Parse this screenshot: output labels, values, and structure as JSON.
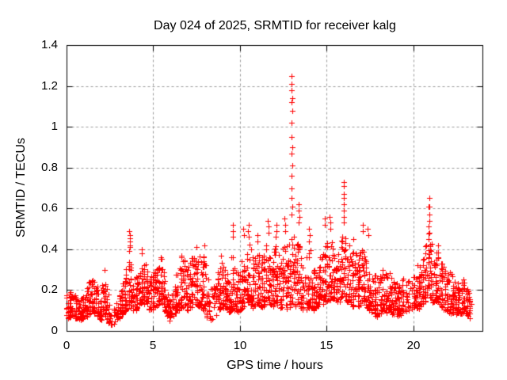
{
  "title": "Day 024 of 2025, SRMTID for receiver kalg",
  "chart_data": {
    "type": "scatter",
    "title": "Day 024 of 2025, SRMTID for receiver kalg",
    "xlabel": "GPS time / hours",
    "ylabel": "SRMTID / TECUs",
    "marker": "plus",
    "marker_color": "#ff0000",
    "frame_color": "#000000",
    "grid": true,
    "grid_color": "#9b9b9b",
    "background_color": "#ffffff",
    "legend": "none",
    "xlim": [
      0,
      24
    ],
    "ylim": [
      0,
      1.4
    ],
    "xticks": {
      "values": [
        0,
        5,
        10,
        15,
        20
      ],
      "labels": [
        "0",
        "5",
        "10",
        "15",
        "20"
      ]
    },
    "yticks": {
      "values": [
        0,
        0.2,
        0.4,
        0.6,
        0.8,
        1.0,
        1.2,
        1.4
      ],
      "labels": [
        "0",
        "0.2",
        "0.4",
        "0.6",
        "0.8",
        "1",
        "1.2",
        "1.4"
      ]
    },
    "band_envelope": [
      [
        0.0,
        0.06,
        0.2
      ],
      [
        0.3,
        0.07,
        0.19
      ],
      [
        0.6,
        0.06,
        0.17
      ],
      [
        0.9,
        0.05,
        0.16
      ],
      [
        1.15,
        0.07,
        0.2
      ],
      [
        1.4,
        0.09,
        0.26
      ],
      [
        1.65,
        0.08,
        0.24
      ],
      [
        1.9,
        0.05,
        0.17
      ],
      [
        2.1,
        0.07,
        0.24
      ],
      [
        2.25,
        0.08,
        0.31
      ],
      [
        2.4,
        0.04,
        0.14,
        1
      ],
      [
        2.6,
        0.03,
        0.1,
        1
      ],
      [
        2.8,
        0.04,
        0.12,
        1
      ],
      [
        3.0,
        0.06,
        0.16
      ],
      [
        3.25,
        0.08,
        0.25
      ],
      [
        3.5,
        0.1,
        0.33
      ],
      [
        3.65,
        0.12,
        0.38
      ],
      [
        3.8,
        0.1,
        0.3
      ],
      [
        4.05,
        0.1,
        0.27
      ],
      [
        4.3,
        0.14,
        0.38
      ],
      [
        4.5,
        0.13,
        0.34
      ],
      [
        4.75,
        0.1,
        0.26
      ],
      [
        5.0,
        0.1,
        0.28
      ],
      [
        5.3,
        0.13,
        0.33
      ],
      [
        5.5,
        0.14,
        0.36
      ],
      [
        5.7,
        0.09,
        0.24
      ],
      [
        5.95,
        0.05,
        0.16,
        1
      ],
      [
        6.2,
        0.07,
        0.2
      ],
      [
        6.45,
        0.1,
        0.3
      ],
      [
        6.7,
        0.12,
        0.37
      ],
      [
        6.95,
        0.1,
        0.31
      ],
      [
        7.2,
        0.12,
        0.36
      ],
      [
        7.45,
        0.13,
        0.4
      ],
      [
        7.7,
        0.11,
        0.36
      ],
      [
        7.95,
        0.1,
        0.4
      ],
      [
        8.15,
        0.06,
        0.26,
        1
      ],
      [
        8.4,
        0.05,
        0.2,
        1
      ],
      [
        8.65,
        0.08,
        0.28
      ],
      [
        8.9,
        0.11,
        0.35
      ],
      [
        9.15,
        0.11,
        0.32
      ],
      [
        9.4,
        0.09,
        0.28
      ],
      [
        9.6,
        0.11,
        0.38
      ],
      [
        9.85,
        0.09,
        0.28
      ],
      [
        10.1,
        0.11,
        0.36
      ],
      [
        10.3,
        0.13,
        0.42
      ],
      [
        10.55,
        0.14,
        0.43
      ],
      [
        10.8,
        0.11,
        0.34
      ],
      [
        11.05,
        0.13,
        0.4
      ],
      [
        11.3,
        0.11,
        0.36
      ],
      [
        11.6,
        0.14,
        0.44
      ],
      [
        11.85,
        0.12,
        0.38
      ],
      [
        12.1,
        0.14,
        0.43
      ],
      [
        12.35,
        0.1,
        0.34
      ],
      [
        12.6,
        0.14,
        0.46
      ],
      [
        12.8,
        0.1,
        0.38
      ],
      [
        13.0,
        0.14,
        0.52
      ],
      [
        13.2,
        0.11,
        0.42
      ],
      [
        13.4,
        0.14,
        0.48
      ],
      [
        13.6,
        0.09,
        0.33,
        1
      ],
      [
        13.85,
        0.1,
        0.36
      ],
      [
        14.05,
        0.12,
        0.4
      ],
      [
        14.3,
        0.1,
        0.33
      ],
      [
        14.6,
        0.12,
        0.36
      ],
      [
        14.9,
        0.14,
        0.43
      ],
      [
        15.15,
        0.15,
        0.46
      ],
      [
        15.4,
        0.16,
        0.44
      ],
      [
        15.7,
        0.14,
        0.4
      ],
      [
        15.95,
        0.17,
        0.5
      ],
      [
        16.2,
        0.14,
        0.44
      ],
      [
        16.5,
        0.12,
        0.4
      ],
      [
        16.8,
        0.12,
        0.37
      ],
      [
        17.05,
        0.13,
        0.42
      ],
      [
        17.35,
        0.11,
        0.38
      ],
      [
        17.6,
        0.09,
        0.3
      ],
      [
        17.9,
        0.07,
        0.27
      ],
      [
        18.2,
        0.09,
        0.31
      ],
      [
        18.5,
        0.09,
        0.33
      ],
      [
        18.8,
        0.08,
        0.29
      ],
      [
        19.1,
        0.07,
        0.24
      ],
      [
        19.4,
        0.08,
        0.26,
        1
      ],
      [
        19.7,
        0.09,
        0.24,
        1
      ],
      [
        20.0,
        0.11,
        0.28
      ],
      [
        20.3,
        0.11,
        0.33
      ],
      [
        20.6,
        0.13,
        0.38
      ],
      [
        20.9,
        0.17,
        0.5
      ],
      [
        21.1,
        0.14,
        0.44
      ],
      [
        21.4,
        0.14,
        0.4
      ],
      [
        21.7,
        0.11,
        0.34
      ],
      [
        22.0,
        0.09,
        0.3
      ],
      [
        22.3,
        0.08,
        0.27
      ],
      [
        22.6,
        0.08,
        0.24
      ],
      [
        22.9,
        0.09,
        0.26
      ],
      [
        23.1,
        0.07,
        0.22
      ],
      [
        23.32,
        0.06,
        0.18,
        1
      ]
    ],
    "peak_points": [
      [
        12.99,
        1.25
      ],
      [
        13.0,
        1.21
      ],
      [
        13.0,
        1.18
      ],
      [
        13.02,
        1.14
      ],
      [
        12.99,
        1.12
      ],
      [
        13.01,
        1.08
      ],
      [
        12.98,
        1.02
      ],
      [
        13.0,
        0.95
      ],
      [
        13.02,
        0.9
      ],
      [
        12.99,
        0.87
      ],
      [
        13.01,
        0.81
      ],
      [
        13.0,
        0.76
      ],
      [
        13.0,
        0.7
      ],
      [
        12.98,
        0.65
      ],
      [
        13.01,
        0.61
      ],
      [
        13.0,
        0.57
      ],
      [
        3.63,
        0.49
      ],
      [
        3.65,
        0.47
      ],
      [
        3.66,
        0.455
      ],
      [
        3.64,
        0.44
      ],
      [
        3.65,
        0.42
      ],
      [
        3.67,
        0.41
      ],
      [
        3.63,
        0.39
      ],
      [
        4.32,
        0.4
      ],
      [
        4.35,
        0.38
      ],
      [
        5.45,
        0.36
      ],
      [
        6.65,
        0.37
      ],
      [
        7.5,
        0.41
      ],
      [
        7.95,
        0.42
      ],
      [
        8.9,
        0.37
      ],
      [
        9.58,
        0.52
      ],
      [
        9.6,
        0.49
      ],
      [
        9.62,
        0.46
      ],
      [
        10.2,
        0.5
      ],
      [
        10.22,
        0.47
      ],
      [
        10.5,
        0.52
      ],
      [
        10.48,
        0.49
      ],
      [
        10.52,
        0.46
      ],
      [
        11.0,
        0.47
      ],
      [
        11.02,
        0.44
      ],
      [
        11.63,
        0.54
      ],
      [
        11.65,
        0.51
      ],
      [
        11.66,
        0.48
      ],
      [
        12.1,
        0.52
      ],
      [
        12.12,
        0.49
      ],
      [
        12.08,
        0.46
      ],
      [
        12.58,
        0.55
      ],
      [
        12.6,
        0.52
      ],
      [
        12.62,
        0.49
      ],
      [
        13.38,
        0.62
      ],
      [
        13.4,
        0.59
      ],
      [
        13.42,
        0.56
      ],
      [
        13.4,
        0.53
      ],
      [
        14.0,
        0.5
      ],
      [
        14.02,
        0.47
      ],
      [
        13.98,
        0.44
      ],
      [
        14.88,
        0.55
      ],
      [
        14.9,
        0.52
      ],
      [
        15.18,
        0.56
      ],
      [
        15.2,
        0.53
      ],
      [
        15.22,
        0.5
      ],
      [
        15.98,
        0.73
      ],
      [
        16.0,
        0.71
      ],
      [
        16.02,
        0.67
      ],
      [
        15.99,
        0.65
      ],
      [
        16.01,
        0.62
      ],
      [
        16.0,
        0.59
      ],
      [
        16.02,
        0.56
      ],
      [
        15.98,
        0.53
      ],
      [
        16.55,
        0.45
      ],
      [
        17.08,
        0.52
      ],
      [
        17.1,
        0.49
      ],
      [
        17.38,
        0.5
      ],
      [
        17.4,
        0.47
      ],
      [
        20.92,
        0.65
      ],
      [
        20.95,
        0.61
      ],
      [
        20.9,
        0.61
      ],
      [
        20.93,
        0.57
      ],
      [
        20.95,
        0.54
      ],
      [
        20.9,
        0.51
      ],
      [
        20.94,
        0.48
      ],
      [
        20.91,
        0.45
      ],
      [
        21.45,
        0.42
      ]
    ],
    "sampling": {
      "dt": 0.02,
      "seed": 77,
      "bias": 1.6,
      "t_jitter": 0.12,
      "t_grid": 0.08,
      "grid_frac": 0.7
    }
  }
}
